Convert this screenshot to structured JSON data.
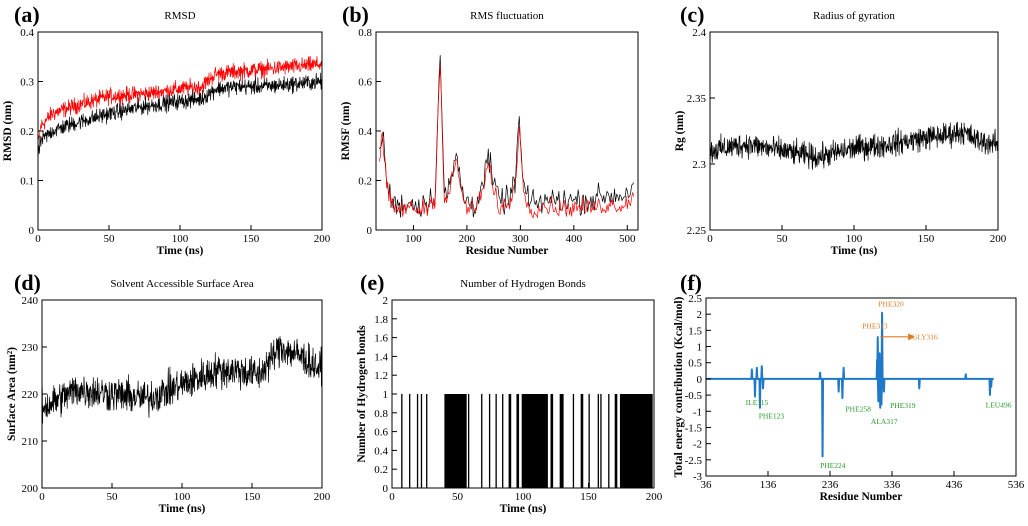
{
  "chart_data": [
    {
      "id": "a",
      "panel_label": "(a)",
      "type": "line",
      "title": "RMSD",
      "xlabel": "Time (ns)",
      "ylabel": "RMSD (nm)",
      "xlim": [
        0,
        200
      ],
      "ylim": [
        0,
        0.4
      ],
      "xticks": [
        0,
        50,
        100,
        150,
        200
      ],
      "yticks": [
        0,
        0.1,
        0.2,
        0.3,
        0.4
      ],
      "ytick_labels": [
        "0",
        "0.1",
        "0.2",
        "0.3",
        "0.4"
      ],
      "noise": 0.014,
      "colors": {
        "black_series": "#000000",
        "red_series": "#ff0000"
      },
      "series": [
        {
          "color": "red_series",
          "x": [
            0,
            2,
            10,
            25,
            50,
            75,
            100,
            115,
            125,
            140,
            160,
            180,
            200
          ],
          "y": [
            0.17,
            0.21,
            0.235,
            0.25,
            0.27,
            0.275,
            0.285,
            0.29,
            0.315,
            0.32,
            0.325,
            0.33,
            0.335
          ]
        },
        {
          "color": "black_series",
          "x": [
            0,
            2,
            10,
            25,
            50,
            75,
            100,
            115,
            125,
            140,
            160,
            180,
            200
          ],
          "y": [
            0.15,
            0.18,
            0.2,
            0.215,
            0.235,
            0.25,
            0.26,
            0.265,
            0.285,
            0.29,
            0.29,
            0.295,
            0.3
          ]
        }
      ]
    },
    {
      "id": "b",
      "panel_label": "(b)",
      "type": "line",
      "title": "RMS fluctuation",
      "xlabel": "Residue Number",
      "ylabel": "RMSF (nm)",
      "xlim": [
        30,
        520
      ],
      "ylim": [
        0,
        0.8
      ],
      "xticks": [
        100,
        200,
        300,
        400,
        500
      ],
      "yticks": [
        0,
        0.2,
        0.4,
        0.6,
        0.8
      ],
      "ytick_labels": [
        "0",
        "0.2",
        "0.4",
        "0.6",
        "0.8"
      ],
      "noise": 0.045,
      "colors": {
        "black_series": "#000000",
        "red_series": "#ff0000"
      },
      "series": [
        {
          "color": "black_series",
          "x": [
            36,
            42,
            50,
            58,
            70,
            90,
            110,
            130,
            140,
            150,
            158,
            168,
            180,
            195,
            215,
            232,
            240,
            250,
            262,
            278,
            290,
            298,
            305,
            320,
            345,
            370,
            400,
            430,
            460,
            490,
            505,
            512
          ],
          "y": [
            0.3,
            0.4,
            0.2,
            0.12,
            0.1,
            0.11,
            0.1,
            0.12,
            0.14,
            0.72,
            0.12,
            0.18,
            0.3,
            0.12,
            0.1,
            0.2,
            0.3,
            0.18,
            0.12,
            0.12,
            0.2,
            0.45,
            0.18,
            0.1,
            0.12,
            0.12,
            0.12,
            0.12,
            0.14,
            0.14,
            0.16,
            0.2
          ]
        },
        {
          "color": "red_series",
          "x": [
            36,
            42,
            50,
            58,
            70,
            90,
            110,
            130,
            140,
            150,
            158,
            168,
            180,
            195,
            215,
            232,
            240,
            250,
            262,
            278,
            290,
            298,
            305,
            320,
            345,
            370,
            400,
            430,
            460,
            490,
            505,
            512
          ],
          "y": [
            0.26,
            0.38,
            0.18,
            0.1,
            0.08,
            0.09,
            0.08,
            0.1,
            0.12,
            0.7,
            0.1,
            0.16,
            0.28,
            0.1,
            0.08,
            0.18,
            0.27,
            0.15,
            0.09,
            0.1,
            0.18,
            0.43,
            0.16,
            0.08,
            0.1,
            0.09,
            0.09,
            0.09,
            0.1,
            0.1,
            0.12,
            0.16
          ]
        }
      ]
    },
    {
      "id": "c",
      "panel_label": "(c)",
      "type": "line",
      "title": "Radius of gyration",
      "xlabel": "Time (ns)",
      "ylabel": "Rg (nm)",
      "xlim": [
        0,
        200
      ],
      "ylim": [
        2.25,
        2.4
      ],
      "xticks": [
        0,
        50,
        100,
        150,
        200
      ],
      "yticks": [
        2.25,
        2.3,
        2.35,
        2.4
      ],
      "ytick_labels": [
        "2.25",
        "2.3",
        "2.35",
        "2.4"
      ],
      "noise": 0.008,
      "colors": {
        "black_series": "#000000"
      },
      "series": [
        {
          "color": "black_series",
          "x": [
            0,
            25,
            50,
            75,
            100,
            125,
            150,
            165,
            175,
            185,
            200
          ],
          "y": [
            2.31,
            2.315,
            2.31,
            2.305,
            2.312,
            2.315,
            2.32,
            2.322,
            2.325,
            2.318,
            2.315
          ]
        }
      ]
    },
    {
      "id": "d",
      "panel_label": "(d)",
      "type": "line",
      "title": "Solvent Accessible Surface Area",
      "xlabel": "Time (ns)",
      "ylabel": "Surface Area (nm²)",
      "xlim": [
        0,
        200
      ],
      "ylim": [
        200,
        240
      ],
      "xticks": [
        0,
        50,
        100,
        150,
        200
      ],
      "yticks": [
        200,
        210,
        220,
        230,
        240
      ],
      "ytick_labels": [
        "200",
        "210",
        "220",
        "230",
        "240"
      ],
      "noise": 3.2,
      "colors": {
        "black_series": "#000000"
      },
      "series": [
        {
          "color": "black_series",
          "x": [
            0,
            25,
            50,
            75,
            100,
            125,
            140,
            155,
            170,
            185,
            200
          ],
          "y": [
            217,
            221,
            220,
            219,
            222,
            225,
            225,
            224,
            230,
            228,
            225
          ]
        }
      ]
    },
    {
      "id": "e",
      "panel_label": "(e)",
      "type": "bar",
      "title": "Number of Hydrogen Bonds",
      "xlabel": "Time (ns)",
      "ylabel": "Number of Hydrogen bonds",
      "xlim": [
        0,
        200
      ],
      "ylim": [
        0,
        2
      ],
      "xticks": [
        0,
        50,
        100,
        150,
        200
      ],
      "yticks": [
        0,
        0.2,
        0.4,
        0.6,
        0.8,
        1,
        1.2,
        1.4,
        1.6,
        1.8,
        2
      ],
      "ytick_labels": [
        "0",
        "0.2",
        "0.4",
        "0.6",
        "0.8",
        "1",
        "1.2",
        "1.4",
        "1.6",
        "1.8",
        "2"
      ],
      "bond_value": 1,
      "colors": {
        "bars": "#000000"
      },
      "intervals": [
        [
          7,
          8
        ],
        [
          13,
          14
        ],
        [
          19,
          20
        ],
        [
          22,
          23
        ],
        [
          26,
          27
        ],
        [
          40,
          57
        ],
        [
          58,
          59
        ],
        [
          68,
          69
        ],
        [
          74,
          75
        ],
        [
          79,
          80
        ],
        [
          84,
          85
        ],
        [
          89,
          91
        ],
        [
          95,
          97
        ],
        [
          99,
          119
        ],
        [
          121,
          123
        ],
        [
          128,
          131
        ],
        [
          138,
          139
        ],
        [
          144,
          146
        ],
        [
          150,
          151
        ],
        [
          157,
          158
        ],
        [
          159,
          160
        ],
        [
          165,
          166
        ],
        [
          170,
          172
        ],
        [
          174,
          199
        ]
      ]
    },
    {
      "id": "f",
      "panel_label": "(f)",
      "type": "line",
      "title": "",
      "xlabel": "Residue Number",
      "ylabel": "Total energy contribution (Kcal/mol)",
      "xlim": [
        36,
        536
      ],
      "ylim": [
        -3,
        2.5
      ],
      "xticks": [
        36,
        136,
        236,
        336,
        436,
        536
      ],
      "yticks": [
        -3,
        -2.5,
        -2,
        -1.5,
        -1,
        -0.5,
        0,
        0.5,
        1,
        1.5,
        2,
        2.5
      ],
      "ytick_labels": [
        "-3",
        "-2.5",
        "-2",
        "-1.5",
        "-1",
        "-0.5",
        "0",
        "0.5",
        "1",
        "1.5",
        "2",
        "2.5"
      ],
      "colors": {
        "line": "#1f78c8",
        "green_label": "#2a9a2a",
        "orange_label": "#e07b20"
      },
      "line_x": [
        36,
        500
      ],
      "spikes": [
        {
          "x": 110,
          "y": 0.3
        },
        {
          "x": 115,
          "y": -0.55
        },
        {
          "x": 118,
          "y": 0.35
        },
        {
          "x": 123,
          "y": -0.9
        },
        {
          "x": 126,
          "y": 0.4
        },
        {
          "x": 128,
          "y": -0.3
        },
        {
          "x": 220,
          "y": 0.2
        },
        {
          "x": 224,
          "y": -2.4
        },
        {
          "x": 250,
          "y": -0.4
        },
        {
          "x": 256,
          "y": -0.6
        },
        {
          "x": 258,
          "y": 0.35
        },
        {
          "x": 312,
          "y": 0.6
        },
        {
          "x": 313,
          "y": 1.3
        },
        {
          "x": 314,
          "y": -0.7
        },
        {
          "x": 316,
          "y": 0.8
        },
        {
          "x": 317,
          "y": -0.9
        },
        {
          "x": 319,
          "y": -0.8
        },
        {
          "x": 320,
          "y": 2.05
        },
        {
          "x": 323,
          "y": -0.4
        },
        {
          "x": 380,
          "y": -0.3
        },
        {
          "x": 455,
          "y": 0.15
        },
        {
          "x": 494,
          "y": -0.5
        },
        {
          "x": 496,
          "y": -0.25
        }
      ],
      "annotations": [
        {
          "text": "ILE115",
          "x": 100,
          "y": -0.8,
          "color": "green_label"
        },
        {
          "text": "PHE123",
          "x": 121,
          "y": -1.22,
          "color": "green_label"
        },
        {
          "text": "PHE224",
          "x": 220,
          "y": -2.75,
          "color": "green_label"
        },
        {
          "text": "PHE258",
          "x": 261,
          "y": -1.0,
          "color": "green_label"
        },
        {
          "text": "PHE319",
          "x": 333,
          "y": -0.9,
          "color": "green_label"
        },
        {
          "text": "ALA317",
          "x": 302,
          "y": -1.4,
          "color": "green_label"
        },
        {
          "text": "LEU496",
          "x": 487,
          "y": -0.88,
          "color": "green_label"
        },
        {
          "text": "PHE313",
          "x": 288,
          "y": 1.55,
          "color": "orange_label"
        },
        {
          "text": "PHE320",
          "x": 314,
          "y": 2.23,
          "color": "orange_label"
        },
        {
          "text": "GLY316",
          "x": 368,
          "y": 1.22,
          "color": "orange_label"
        }
      ],
      "arrow": {
        "x1": 317,
        "x2": 362,
        "y": 1.3,
        "color": "orange_label"
      }
    }
  ]
}
